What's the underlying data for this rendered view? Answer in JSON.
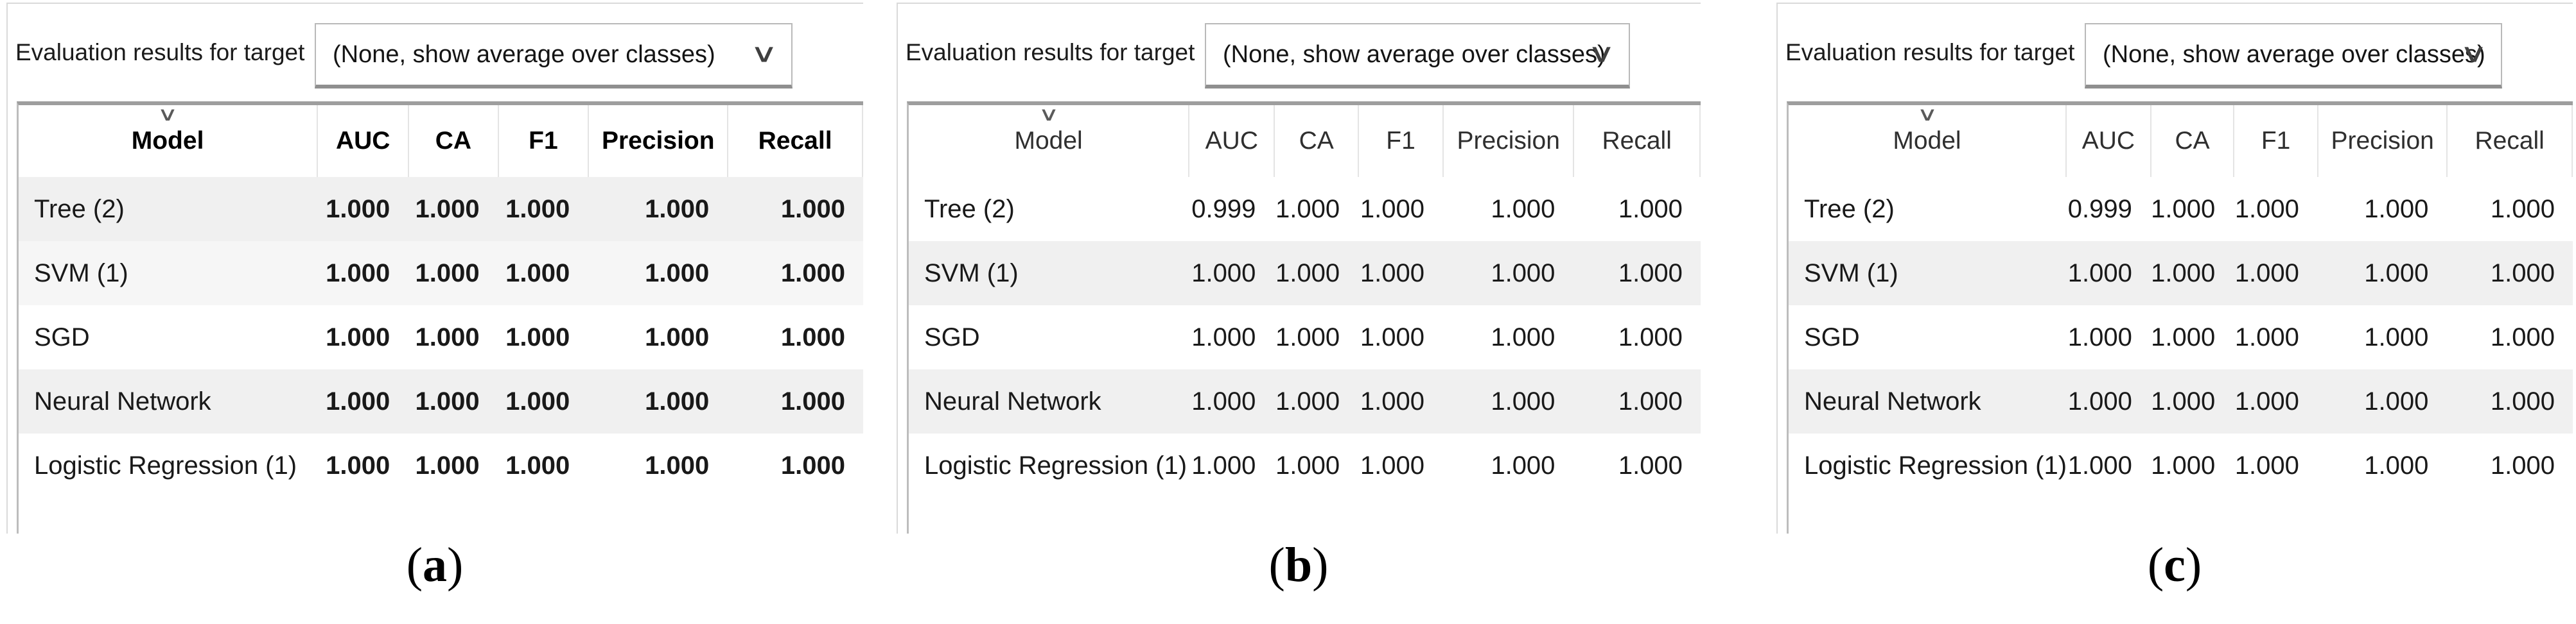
{
  "figure": {
    "colors": {
      "row_stripe": "#f0f0f0",
      "row_stripe_light": "#f6f6f6",
      "table_top_border": "#9e9e9e",
      "combo_border": "#b9b9b9",
      "combo_underline": "#8f8f8f",
      "caption_color": "#000000"
    },
    "panels": [
      {
        "caption": {
          "open": "(",
          "letter": "a",
          "close": ")"
        },
        "toolbar": {
          "label": "Evaluation results for target",
          "dropdown_value": "(None, show average over classes)",
          "dropdown_icon": "chevron-down-icon"
        },
        "table": {
          "sort_indicator_icon": "chevron-down-icon",
          "columns": [
            "Model",
            "AUC",
            "CA",
            "F1",
            "Precision",
            "Recall"
          ],
          "rows": [
            {
              "model": "Tree (2)",
              "values": [
                "1.000",
                "1.000",
                "1.000",
                "1.000",
                "1.000"
              ]
            },
            {
              "model": "SVM (1)",
              "values": [
                "1.000",
                "1.000",
                "1.000",
                "1.000",
                "1.000"
              ]
            },
            {
              "model": "SGD",
              "values": [
                "1.000",
                "1.000",
                "1.000",
                "1.000",
                "1.000"
              ]
            },
            {
              "model": "Neural Network",
              "values": [
                "1.000",
                "1.000",
                "1.000",
                "1.000",
                "1.000"
              ]
            },
            {
              "model": "Logistic Regression (1)",
              "values": [
                "1.000",
                "1.000",
                "1.000",
                "1.000",
                "1.000"
              ]
            }
          ]
        }
      },
      {
        "caption": {
          "open": "(",
          "letter": "b",
          "close": ")"
        },
        "toolbar": {
          "label": "Evaluation results for target",
          "dropdown_value": "(None, show average over classes)",
          "dropdown_icon": "chevron-down-icon"
        },
        "table": {
          "sort_indicator_icon": "chevron-down-icon",
          "columns": [
            "Model",
            "AUC",
            "CA",
            "F1",
            "Precision",
            "Recall"
          ],
          "rows": [
            {
              "model": "Tree (2)",
              "values": [
                "0.999",
                "1.000",
                "1.000",
                "1.000",
                "1.000"
              ]
            },
            {
              "model": "SVM (1)",
              "values": [
                "1.000",
                "1.000",
                "1.000",
                "1.000",
                "1.000"
              ]
            },
            {
              "model": "SGD",
              "values": [
                "1.000",
                "1.000",
                "1.000",
                "1.000",
                "1.000"
              ]
            },
            {
              "model": "Neural Network",
              "values": [
                "1.000",
                "1.000",
                "1.000",
                "1.000",
                "1.000"
              ]
            },
            {
              "model": "Logistic Regression (1)",
              "values": [
                "1.000",
                "1.000",
                "1.000",
                "1.000",
                "1.000"
              ]
            }
          ]
        }
      },
      {
        "caption": {
          "open": "(",
          "letter": "c",
          "close": ")"
        },
        "toolbar": {
          "label": "Evaluation results for target",
          "dropdown_value": "(None, show average over classes)",
          "dropdown_icon": "chevron-down-icon"
        },
        "table": {
          "sort_indicator_icon": "chevron-down-icon",
          "columns": [
            "Model",
            "AUC",
            "CA",
            "F1",
            "Precision",
            "Recall"
          ],
          "rows": [
            {
              "model": "Tree (2)",
              "values": [
                "0.999",
                "1.000",
                "1.000",
                "1.000",
                "1.000"
              ]
            },
            {
              "model": "SVM (1)",
              "values": [
                "1.000",
                "1.000",
                "1.000",
                "1.000",
                "1.000"
              ]
            },
            {
              "model": "SGD",
              "values": [
                "1.000",
                "1.000",
                "1.000",
                "1.000",
                "1.000"
              ]
            },
            {
              "model": "Neural Network",
              "values": [
                "1.000",
                "1.000",
                "1.000",
                "1.000",
                "1.000"
              ]
            },
            {
              "model": "Logistic Regression (1)",
              "values": [
                "1.000",
                "1.000",
                "1.000",
                "1.000",
                "1.000"
              ]
            }
          ]
        }
      }
    ]
  }
}
